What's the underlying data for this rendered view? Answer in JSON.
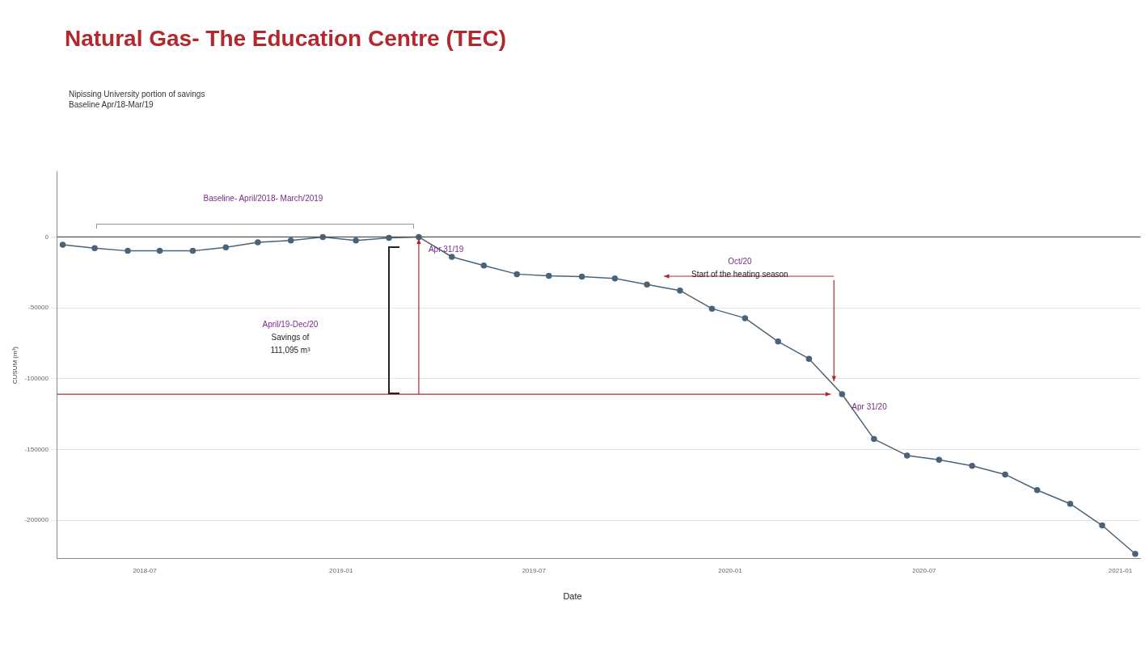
{
  "chart_data": {
    "type": "line",
    "title": "Natural Gas- The Education Centre (TEC)",
    "subtitle": "Nipissing University portion of savings\nBaseline Apr/18-Mar/19",
    "xlabel": "Date",
    "ylabel": "CUSUM (m³)",
    "x": [
      "2018-04-15",
      "2018-05-15",
      "2018-06-15",
      "2018-07-15",
      "2018-08-15",
      "2018-09-15",
      "2018-10-15",
      "2018-11-15",
      "2018-12-15",
      "2019-01-15",
      "2019-02-15",
      "2019-03-15",
      "2019-04-15",
      "2019-05-15",
      "2019-06-15",
      "2019-07-15",
      "2019-08-15",
      "2019-09-15",
      "2019-10-15",
      "2019-11-15",
      "2019-12-15",
      "2020-01-15",
      "2020-02-15",
      "2020-03-15",
      "2020-04-15",
      "2020-05-15",
      "2020-06-15",
      "2020-07-15",
      "2020-08-15",
      "2020-09-15",
      "2020-10-15",
      "2020-11-15",
      "2020-12-15",
      "2021-01-15"
    ],
    "series": [
      {
        "color": "#4a6378",
        "values": [
          -5500,
          -7900,
          -9800,
          -9800,
          -9800,
          -7300,
          -3700,
          -2400,
          0,
          -2400,
          -600,
          0,
          -14000,
          -20100,
          -26200,
          -27400,
          -28000,
          -29300,
          -33500,
          -37800,
          -50600,
          -57300,
          -73800,
          -86000,
          -111000,
          -142700,
          -154300,
          -157300,
          -161600,
          -167700,
          -178700,
          -188400,
          -203700,
          -223800
        ]
      }
    ],
    "xlim": [
      "2018-04-10",
      "2021-01-20"
    ],
    "xticks": [
      {
        "value": "2018-07-01",
        "label": "2018-07"
      },
      {
        "value": "2019-01-01",
        "label": "2019-01"
      },
      {
        "value": "2019-07-01",
        "label": "2019-07"
      },
      {
        "value": "2020-01-01",
        "label": "2020-01"
      },
      {
        "value": "2020-07-01",
        "label": "2020-07"
      },
      {
        "value": "2021-01-01",
        "label": "2021-01"
      }
    ],
    "ylim": [
      -227000,
      46000
    ],
    "yticks": [
      0,
      -50000,
      -100000,
      -150000,
      -200000
    ],
    "ref_lines": [
      {
        "axis": "y",
        "value": 0,
        "color": "#555555"
      }
    ],
    "annotations": [
      "Baseline- April/2018- March/2019",
      "April/19-Dec/20\nSavings of\n111,095 m³",
      "Oct/20\nStart of the heating season",
      {
        "text": "Apr 31/19",
        "x": "2019-03-15",
        "y": 0
      },
      {
        "text": "Apr 31/20",
        "x": "2020-04-15",
        "y": -111000
      }
    ],
    "grid": "y",
    "legend": false,
    "marker": "circle",
    "line_style": "solid"
  }
}
